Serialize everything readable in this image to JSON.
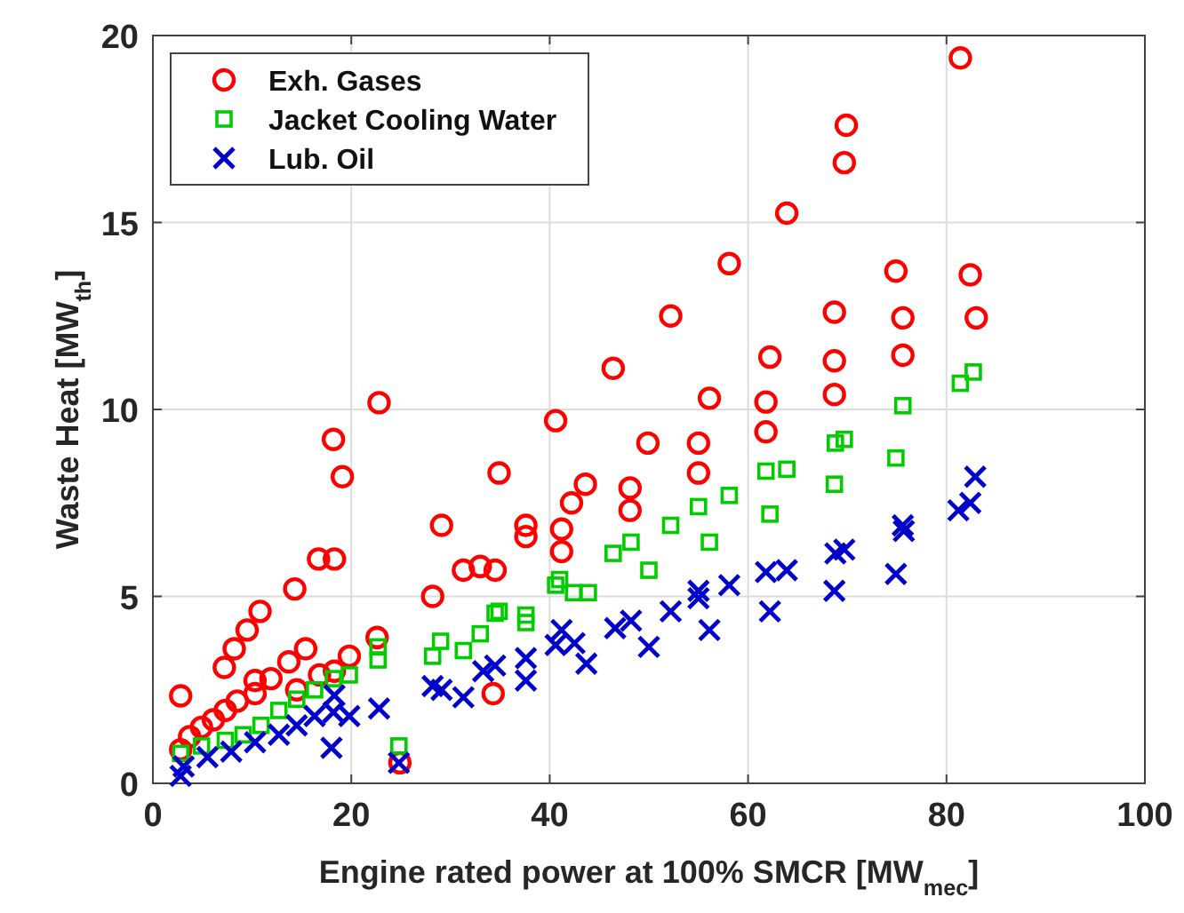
{
  "chart_data": {
    "type": "scatter",
    "xlabel": "Engine rated power at 100% SMCR [MW$_{mec}$]",
    "ylabel": "Waste Heat [MW$_{th}$]",
    "xlim": [
      0,
      100
    ],
    "xticks": [
      0,
      20,
      40,
      60,
      80,
      100
    ],
    "ylim": [
      0,
      20
    ],
    "yticks": [
      0,
      5,
      10,
      15,
      20
    ],
    "grid": true,
    "legend": "top left",
    "series": [
      {
        "name": "Exh. Gases",
        "color": "#ff0000",
        "marker": "circle",
        "x": [
          22.8,
          18.2,
          19.1,
          29.1,
          16.7,
          18.3,
          14.3,
          28.2,
          10.8,
          9.5,
          8.2,
          7.2,
          2.8,
          22.6,
          15.4,
          13.7,
          19.8,
          11.9,
          10.3,
          18.3,
          16.8,
          14.5,
          10.3,
          8.5,
          7.3,
          6.1,
          4.9,
          3.7,
          2.8,
          24.9,
          58.1,
          52.2,
          46.4,
          40.6,
          34.9,
          62.2,
          56.1,
          61.8,
          61.8,
          49.9,
          55.0,
          55.0,
          43.6,
          48.1,
          42.2,
          48.1,
          37.6,
          37.6,
          41.2,
          41.2,
          31.3,
          33.0,
          34.5,
          34.3,
          81.4,
          69.9,
          69.7,
          63.9,
          74.9,
          82.4,
          68.7,
          75.6,
          83.0,
          68.7,
          75.6,
          68.7
        ],
        "values": [
          10.18,
          9.2,
          8.2,
          6.9,
          6.0,
          6.0,
          5.2,
          5.0,
          4.6,
          4.1,
          3.6,
          3.1,
          2.34,
          3.9,
          3.6,
          3.25,
          3.4,
          2.8,
          2.75,
          3.0,
          2.9,
          2.5,
          2.4,
          2.2,
          1.95,
          1.7,
          1.5,
          1.25,
          0.9,
          0.55,
          13.9,
          12.5,
          11.1,
          9.7,
          8.3,
          11.4,
          10.3,
          10.2,
          9.4,
          9.1,
          9.1,
          8.3,
          8.0,
          7.9,
          7.5,
          7.3,
          6.9,
          6.6,
          6.8,
          6.2,
          5.7,
          5.8,
          5.7,
          2.4,
          19.4,
          17.6,
          16.6,
          15.25,
          13.7,
          13.6,
          12.6,
          12.45,
          12.45,
          11.3,
          11.45,
          10.4
        ]
      },
      {
        "name": "Jacket Cooling Water",
        "color": "#00cc00",
        "marker": "square",
        "x": [
          22.7,
          22.7,
          29.0,
          28.2,
          19.8,
          18.2,
          16.3,
          14.5,
          12.7,
          10.9,
          9.1,
          7.3,
          4.9,
          2.8,
          24.8,
          58.1,
          55.0,
          52.2,
          48.2,
          46.4,
          50.0,
          56.1,
          61.8,
          62.2,
          41.0,
          40.6,
          42.4,
          43.9,
          34.5,
          34.9,
          37.6,
          37.6,
          33.0,
          31.3,
          81.4,
          82.7,
          75.6,
          68.8,
          69.7,
          74.9,
          63.9,
          68.7
        ],
        "values": [
          3.65,
          3.3,
          3.8,
          3.4,
          2.9,
          2.8,
          2.5,
          2.25,
          1.95,
          1.55,
          1.3,
          1.15,
          1.0,
          0.8,
          1.0,
          7.7,
          7.4,
          6.9,
          6.45,
          6.15,
          5.7,
          6.45,
          8.35,
          7.2,
          5.45,
          5.3,
          5.1,
          5.1,
          4.55,
          4.6,
          4.5,
          4.3,
          4.0,
          3.55,
          10.7,
          11.0,
          10.1,
          9.1,
          9.2,
          8.7,
          8.4,
          8.0
        ]
      },
      {
        "name": "Lub. Oil",
        "color": "#0000cc",
        "marker": "cross",
        "x": [
          18.3,
          22.8,
          28.2,
          29.1,
          19.8,
          18.2,
          18.0,
          24.8,
          16.3,
          14.5,
          12.7,
          10.3,
          7.9,
          5.5,
          3.1,
          2.8,
          61.8,
          58.1,
          55.0,
          55.0,
          52.2,
          56.1,
          62.2,
          48.2,
          46.6,
          50.0,
          41.2,
          40.6,
          42.5,
          43.7,
          37.6,
          37.6,
          34.5,
          33.3,
          31.3,
          82.9,
          82.4,
          81.2,
          75.6,
          75.7,
          68.8,
          69.7,
          74.9,
          68.7,
          63.9
        ],
        "values": [
          2.35,
          2.0,
          2.6,
          2.5,
          1.8,
          1.9,
          0.95,
          0.55,
          1.8,
          1.55,
          1.3,
          1.1,
          0.85,
          0.7,
          0.45,
          0.2,
          5.65,
          5.3,
          5.15,
          4.95,
          4.6,
          4.1,
          4.6,
          4.35,
          4.15,
          3.65,
          4.1,
          3.7,
          3.75,
          3.2,
          3.35,
          2.75,
          3.15,
          3.0,
          2.3,
          8.2,
          7.5,
          7.3,
          6.9,
          6.75,
          6.15,
          6.25,
          5.6,
          5.15,
          5.7
        ]
      }
    ]
  }
}
